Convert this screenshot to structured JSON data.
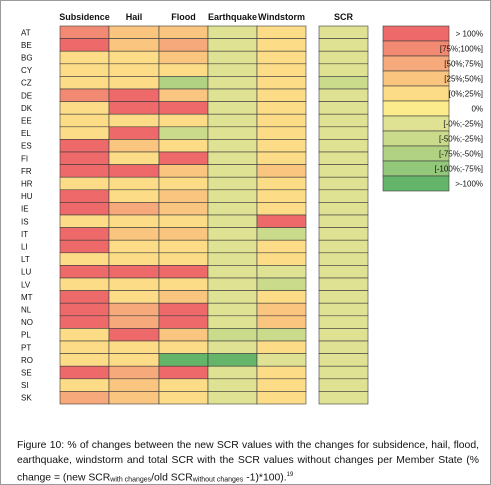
{
  "chart_data": {
    "type": "heatmap",
    "row_labels": [
      "AT",
      "BE",
      "BG",
      "CY",
      "CZ",
      "DE",
      "DK",
      "EE",
      "EL",
      "ES",
      "FI",
      "FR",
      "HR",
      "HU",
      "IE",
      "IS",
      "IT",
      "LI",
      "LT",
      "LU",
      "LV",
      "MT",
      "NL",
      "NO",
      "PL",
      "PT",
      "RO",
      "SE",
      "SI",
      "SK"
    ],
    "column_labels": [
      "Subsidence",
      "Hail",
      "Flood",
      "Earthquake",
      "Windstorm"
    ],
    "scr_label": "SCR",
    "color_classes": [
      {
        "key": "gt100",
        "label": "> 100%",
        "color": "#ee6a6a"
      },
      {
        "key": "75_100",
        "label": "[75%;100%]",
        "color": "#f28a73"
      },
      {
        "key": "50_75",
        "label": "[50%;75%]",
        "color": "#f6a97b"
      },
      {
        "key": "25_50",
        "label": "[25%;50%]",
        "color": "#f9c57f"
      },
      {
        "key": "0_25",
        "label": "[0%;25%]",
        "color": "#fcdc86"
      },
      {
        "key": "zero",
        "label": "0%",
        "color": "#fdec8b"
      },
      {
        "key": "m0_m25",
        "label": "[-0%;-25%]",
        "color": "#dfe293"
      },
      {
        "key": "m25_m50",
        "label": "[-50%;-25%]",
        "color": "#cbdb8c"
      },
      {
        "key": "m50_m75",
        "label": "[-75%;-50%]",
        "color": "#b2d283"
      },
      {
        "key": "m75_m100",
        "label": "[-100%;-75%]",
        "color": "#93c77a"
      },
      {
        "key": "lt_m100",
        "label": ">-100%",
        "color": "#64b56a"
      }
    ],
    "cell_classes": [
      [
        "75_100",
        "25_50",
        "25_50",
        "m0_m25",
        "0_25"
      ],
      [
        "gt100",
        "25_50",
        "50_75",
        "m0_m25",
        "0_25"
      ],
      [
        "0_25",
        "0_25",
        "25_50",
        "m0_m25",
        "0_25"
      ],
      [
        "0_25",
        "0_25",
        "0_25",
        "m0_m25",
        "0_25"
      ],
      [
        "0_25",
        "0_25",
        "m50_m75",
        "m0_m25",
        "0_25"
      ],
      [
        "75_100",
        "gt100",
        "25_50",
        "m0_m25",
        "0_25"
      ],
      [
        "0_25",
        "gt100",
        "gt100",
        "m0_m25",
        "0_25"
      ],
      [
        "0_25",
        "0_25",
        "0_25",
        "m0_m25",
        "0_25"
      ],
      [
        "0_25",
        "gt100",
        "m25_m50",
        "m0_m25",
        "0_25"
      ],
      [
        "gt100",
        "25_50",
        "0_25",
        "m0_m25",
        "0_25"
      ],
      [
        "gt100",
        "0_25",
        "gt100",
        "m0_m25",
        "0_25"
      ],
      [
        "gt100",
        "gt100",
        "25_50",
        "m0_m25",
        "25_50"
      ],
      [
        "0_25",
        "0_25",
        "0_25",
        "m0_m25",
        "0_25"
      ],
      [
        "gt100",
        "0_25",
        "25_50",
        "m0_m25",
        "0_25"
      ],
      [
        "gt100",
        "50_75",
        "25_50",
        "m0_m25",
        "0_25"
      ],
      [
        "0_25",
        "0_25",
        "0_25",
        "m0_m25",
        "gt100"
      ],
      [
        "gt100",
        "25_50",
        "25_50",
        "m0_m25",
        "m25_m50"
      ],
      [
        "gt100",
        "0_25",
        "0_25",
        "m0_m25",
        "0_25"
      ],
      [
        "0_25",
        "0_25",
        "0_25",
        "m0_m25",
        "0_25"
      ],
      [
        "gt100",
        "gt100",
        "gt100",
        "m0_m25",
        "m0_m25"
      ],
      [
        "0_25",
        "0_25",
        "0_25",
        "m0_m25",
        "m25_m50"
      ],
      [
        "gt100",
        "0_25",
        "25_50",
        "m0_m25",
        "0_25"
      ],
      [
        "gt100",
        "50_75",
        "gt100",
        "m0_m25",
        "25_50"
      ],
      [
        "gt100",
        "50_75",
        "gt100",
        "m0_m25",
        "25_50"
      ],
      [
        "0_25",
        "gt100",
        "25_50",
        "m25_m50",
        "m25_m50"
      ],
      [
        "0_25",
        "0_25",
        "0_25",
        "m0_m25",
        "0_25"
      ],
      [
        "0_25",
        "0_25",
        "lt_m100",
        "lt_m100",
        "m0_m25"
      ],
      [
        "gt100",
        "50_75",
        "gt100",
        "m0_m25",
        "0_25"
      ],
      [
        "0_25",
        "25_50",
        "0_25",
        "m0_m25",
        "0_25"
      ],
      [
        "50_75",
        "25_50",
        "0_25",
        "m0_m25",
        "0_25"
      ]
    ],
    "scr_classes": [
      "m0_m25",
      "m0_m25",
      "m0_m25",
      "m0_m25",
      "m25_m50",
      "m0_m25",
      "m0_m25",
      "m0_m25",
      "m0_m25",
      "m0_m25",
      "m0_m25",
      "m0_m25",
      "m0_m25",
      "m0_m25",
      "m0_m25",
      "m0_m25",
      "m0_m25",
      "m0_m25",
      "m0_m25",
      "m0_m25",
      "m0_m25",
      "m0_m25",
      "m0_m25",
      "m0_m25",
      "m0_m25",
      "m0_m25",
      "m0_m25",
      "m0_m25",
      "m0_m25",
      "m0_m25"
    ]
  },
  "caption": {
    "text_1": "Figure 10: % of changes between the new SCR values with the changes for subsidence, hail, flood, earthquake, windstorm and total SCR with the SCR values without changes per Member State (% change = (new SCR",
    "sub_1": "with changes",
    "text_2": "/old SCR",
    "sub_2": "without changes",
    "text_3": " -1)*100).",
    "footnote": "19"
  }
}
